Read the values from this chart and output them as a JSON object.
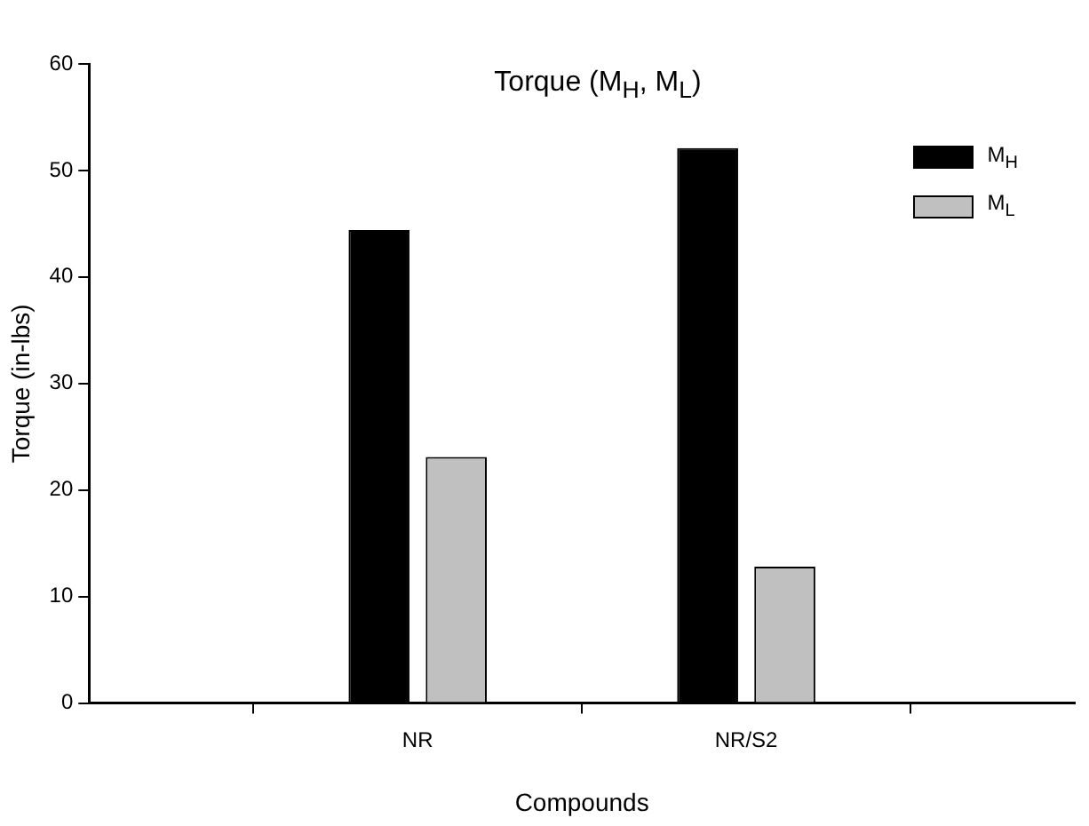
{
  "chart_data": {
    "type": "bar",
    "title": "Torque (M$_{H}$, M$_{L}$)",
    "xlabel": "Compounds",
    "ylabel": "Torque (in-lbs)",
    "categories": [
      "NR",
      "NR/S2"
    ],
    "series": [
      {
        "name": "M$_{H}$",
        "color": "#000000",
        "values": [
          44.4,
          52.1
        ]
      },
      {
        "name": "M$_{L}$",
        "color": "#c0c0c0",
        "values": [
          23.1,
          12.8
        ]
      }
    ],
    "ylim": [
      0,
      60
    ],
    "yticks": [
      0,
      10,
      20,
      30,
      40,
      50,
      60
    ],
    "grid": false,
    "legend": "top right"
  }
}
